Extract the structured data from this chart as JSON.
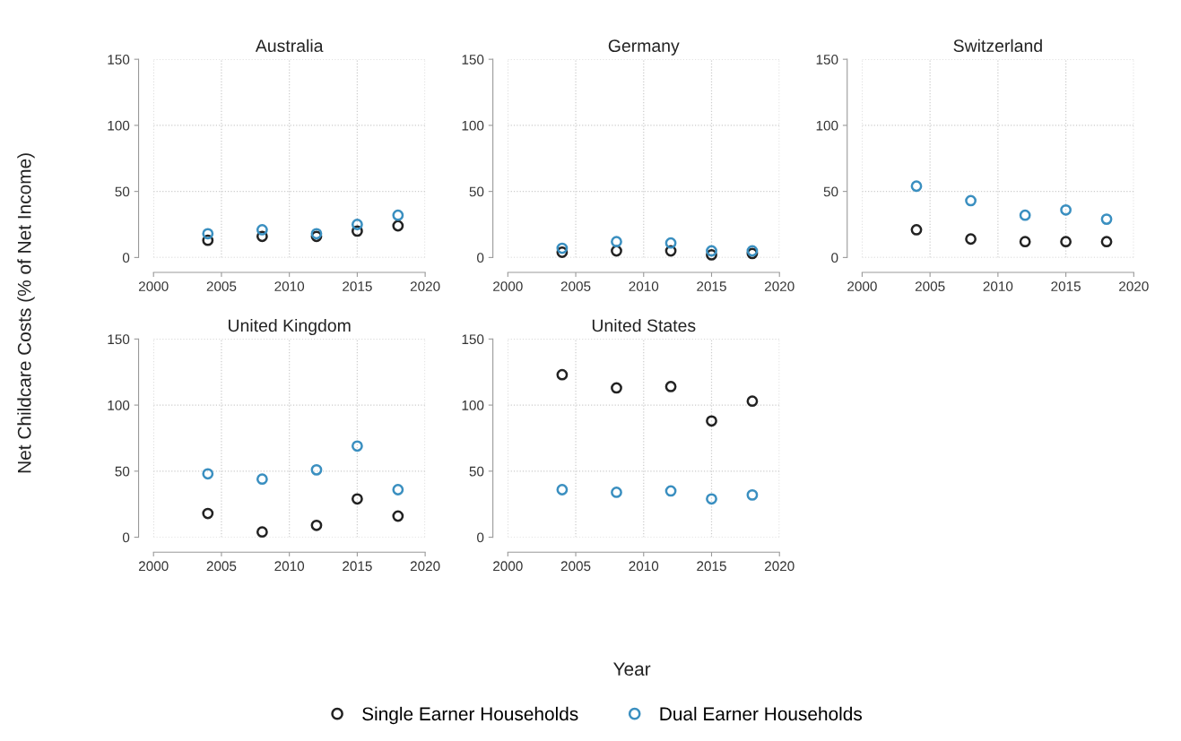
{
  "chart_data": [
    {
      "type": "scatter",
      "title": "Australia",
      "ylabel": "Net Childcare Costs (% of Net Income)",
      "x": [
        2004,
        2008,
        2012,
        2015,
        2018
      ],
      "xlim": [
        2000,
        2020
      ],
      "xticks": [
        2000,
        2005,
        2010,
        2015,
        2020
      ],
      "ylim": [
        0,
        150
      ],
      "yticks": [
        0,
        50,
        100,
        150
      ],
      "grid": true,
      "marker": "circle",
      "legend": "bottom",
      "series": [
        {
          "name": "Single Earner Households",
          "color": "#222222",
          "values": [
            13,
            16,
            16,
            20,
            24
          ]
        },
        {
          "name": "Dual Earner Households",
          "color": "#3a8fc0",
          "values": [
            18,
            21,
            18,
            25,
            32
          ]
        }
      ]
    },
    {
      "type": "scatter",
      "title": "Germany",
      "x": [
        2004,
        2008,
        2012,
        2015,
        2018
      ],
      "xlim": [
        2000,
        2020
      ],
      "xticks": [
        2000,
        2005,
        2010,
        2015,
        2020
      ],
      "ylim": [
        0,
        150
      ],
      "yticks": [
        0,
        50,
        100,
        150
      ],
      "grid": true,
      "marker": "circle",
      "legend": false,
      "series": [
        {
          "color": "#222222",
          "values": [
            4,
            5,
            5,
            2,
            3
          ]
        },
        {
          "color": "#3a8fc0",
          "values": [
            7,
            12,
            11,
            5,
            5
          ]
        }
      ]
    },
    {
      "type": "scatter",
      "title": "Switzerland",
      "x": [
        2004,
        2008,
        2012,
        2015,
        2018
      ],
      "xlim": [
        2000,
        2020
      ],
      "xticks": [
        2000,
        2005,
        2010,
        2015,
        2020
      ],
      "ylim": [
        0,
        150
      ],
      "yticks": [
        0,
        50,
        100,
        150
      ],
      "grid": true,
      "marker": "circle",
      "legend": false,
      "series": [
        {
          "color": "#222222",
          "values": [
            21,
            14,
            12,
            12,
            12
          ]
        },
        {
          "color": "#3a8fc0",
          "values": [
            54,
            43,
            32,
            36,
            29
          ]
        }
      ]
    },
    {
      "type": "scatter",
      "title": "United Kingdom",
      "x": [
        2004,
        2008,
        2012,
        2015,
        2018
      ],
      "xlim": [
        2000,
        2020
      ],
      "xticks": [
        2000,
        2005,
        2010,
        2015,
        2020
      ],
      "ylim": [
        0,
        150
      ],
      "yticks": [
        0,
        50,
        100,
        150
      ],
      "grid": true,
      "marker": "circle",
      "legend": false,
      "series": [
        {
          "color": "#222222",
          "values": [
            18,
            4,
            9,
            29,
            16
          ]
        },
        {
          "color": "#3a8fc0",
          "values": [
            48,
            44,
            51,
            69,
            36
          ]
        }
      ]
    },
    {
      "type": "scatter",
      "title": "United States",
      "xlabel": "Year",
      "x": [
        2004,
        2008,
        2012,
        2015,
        2018
      ],
      "xlim": [
        2000,
        2020
      ],
      "xticks": [
        2000,
        2005,
        2010,
        2015,
        2020
      ],
      "ylim": [
        0,
        150
      ],
      "yticks": [
        0,
        50,
        100,
        150
      ],
      "grid": true,
      "marker": "circle",
      "series": [
        {
          "color": "#222222",
          "values": [
            123,
            113,
            114,
            88,
            103
          ]
        },
        {
          "color": "#3a8fc0",
          "values": [
            36,
            34,
            35,
            29,
            32
          ]
        }
      ]
    }
  ]
}
